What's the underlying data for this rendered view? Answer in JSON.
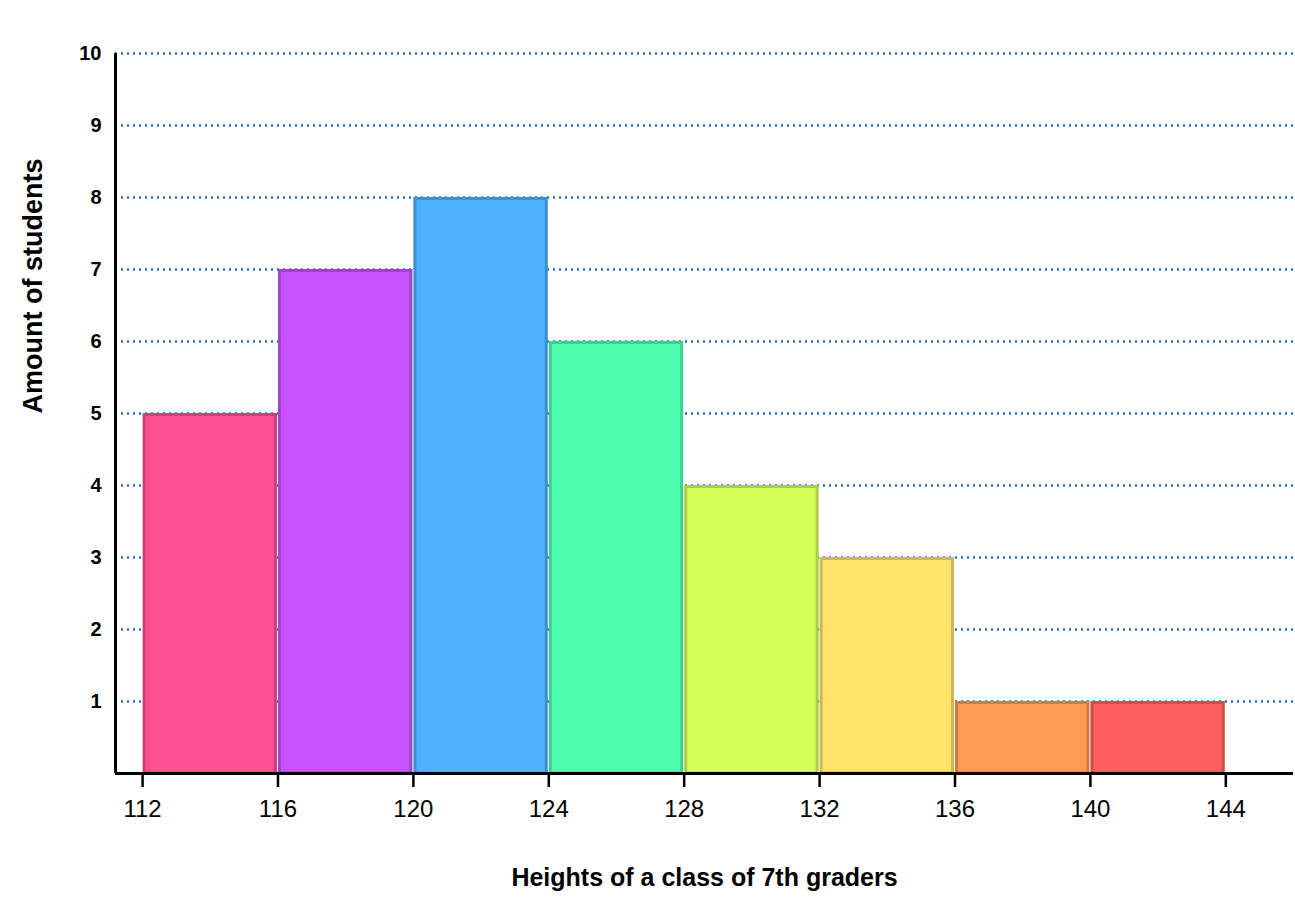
{
  "chart_data": {
    "type": "histogram",
    "x_label": "Heights of a class of 7th graders",
    "y_label": "Amount of students",
    "bins": [
      112,
      116,
      120,
      124,
      128,
      132,
      136,
      140,
      144
    ],
    "values": [
      5,
      7,
      8,
      6,
      4,
      3,
      1,
      1
    ],
    "colors": [
      "#ff4f93",
      "#c653ff",
      "#4db1ff",
      "#4fffb0",
      "#d4ff57",
      "#ffe36a",
      "#ff9a55",
      "#ff5f5f"
    ],
    "xlim": [
      111.2,
      146
    ],
    "xticks": [
      112,
      116,
      120,
      124,
      128,
      132,
      136,
      140,
      144
    ],
    "ylim": [
      0,
      10
    ],
    "yticks": [
      1,
      2,
      3,
      4,
      5,
      6,
      7,
      8,
      9,
      10
    ],
    "grid": true
  }
}
